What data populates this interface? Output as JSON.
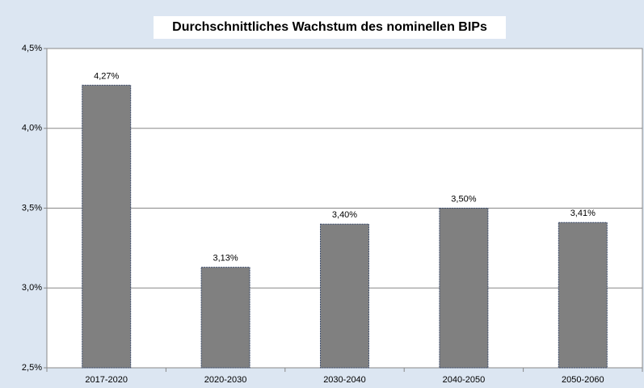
{
  "chart_data": {
    "type": "bar",
    "title": "Durchschnittliches Wachstum des nominellen BIPs",
    "categories": [
      "2017-2020",
      "2020-2030",
      "2030-2040",
      "2040-2050",
      "2050-2060"
    ],
    "values": [
      4.27,
      3.13,
      3.4,
      3.5,
      3.41
    ],
    "value_labels": [
      "4,27%",
      "3,13%",
      "3,40%",
      "3,50%",
      "3,41%"
    ],
    "color": "#808080",
    "ylim": [
      2.5,
      4.5
    ],
    "yticks": [
      {
        "value": 2.5,
        "label": "2,5%"
      },
      {
        "value": 3.0,
        "label": "3,0%"
      },
      {
        "value": 3.5,
        "label": "3,5%"
      },
      {
        "value": 4.0,
        "label": "4,0%"
      },
      {
        "value": 4.5,
        "label": "4,5%"
      }
    ],
    "grid": true
  }
}
